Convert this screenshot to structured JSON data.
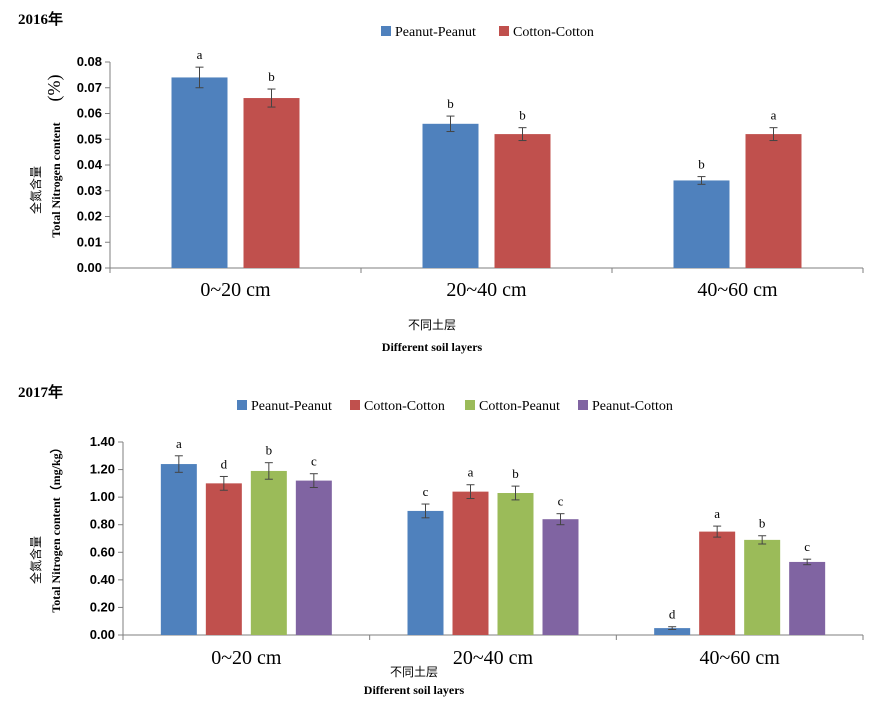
{
  "colors": {
    "Peanut-Peanut": "#4f81bd",
    "Cotton-Cotton": "#c0504d",
    "Cotton-Peanut": "#9bbb59",
    "Peanut-Cotton": "#8064a2",
    "axis": "#7f7f7f"
  },
  "chart_data": [
    {
      "type": "bar",
      "title": "2016年",
      "xlabel_cn": "不同土层",
      "xlabel": "Different soil layers",
      "ylabel_cn": "全氮含量",
      "ylabel": "Total Nitrogen content",
      "ylabel_unit": "(%)",
      "categories": [
        "0~20 cm",
        "20~40 cm",
        "40~60 cm"
      ],
      "ylim": [
        0,
        0.08
      ],
      "yticks": [
        0,
        0.01,
        0.02,
        0.03,
        0.04,
        0.05,
        0.06,
        0.07,
        0.08
      ],
      "ytick_labels": [
        "0.00",
        "0.01",
        "0.02",
        "0.03",
        "0.04",
        "0.05",
        "0.06",
        "0.07",
        "0.08"
      ],
      "legend_position": "top",
      "series": [
        {
          "name": "Peanut-Peanut",
          "values": [
            0.074,
            0.056,
            0.034
          ],
          "errors": [
            0.004,
            0.003,
            0.0015
          ],
          "letters": [
            "a",
            "b",
            "b"
          ]
        },
        {
          "name": "Cotton-Cotton",
          "values": [
            0.066,
            0.052,
            0.052
          ],
          "errors": [
            0.0035,
            0.0025,
            0.0025
          ],
          "letters": [
            "b",
            "b",
            "a"
          ]
        }
      ]
    },
    {
      "type": "bar",
      "title": "2017年",
      "xlabel_cn": "不同土层",
      "xlabel": "Different soil layers",
      "ylabel_cn": "全氮含量",
      "ylabel": "Total Nitrogen content（mg/kg）",
      "categories": [
        "0~20 cm",
        "20~40 cm",
        "40~60 cm"
      ],
      "ylim": [
        0,
        1.4
      ],
      "yticks": [
        0,
        0.2,
        0.4,
        0.6,
        0.8,
        1.0,
        1.2,
        1.4
      ],
      "ytick_labels": [
        "0.00",
        "0.20",
        "0.40",
        "0.60",
        "0.80",
        "1.00",
        "1.20",
        "1.40"
      ],
      "legend_position": "top",
      "series": [
        {
          "name": "Peanut-Peanut",
          "values": [
            1.24,
            0.9,
            0.05
          ],
          "errors": [
            0.06,
            0.05,
            0.01
          ],
          "letters": [
            "a",
            "c",
            "d"
          ]
        },
        {
          "name": "Cotton-Cotton",
          "values": [
            1.1,
            1.04,
            0.75
          ],
          "errors": [
            0.05,
            0.05,
            0.04
          ],
          "letters": [
            "d",
            "a",
            "a"
          ]
        },
        {
          "name": "Cotton-Peanut",
          "values": [
            1.19,
            1.03,
            0.69
          ],
          "errors": [
            0.06,
            0.05,
            0.03
          ],
          "letters": [
            "b",
            "b",
            "b"
          ]
        },
        {
          "name": "Peanut-Cotton",
          "values": [
            1.12,
            0.84,
            0.53
          ],
          "errors": [
            0.05,
            0.04,
            0.02
          ],
          "letters": [
            "c",
            "c",
            "c"
          ]
        }
      ]
    }
  ]
}
